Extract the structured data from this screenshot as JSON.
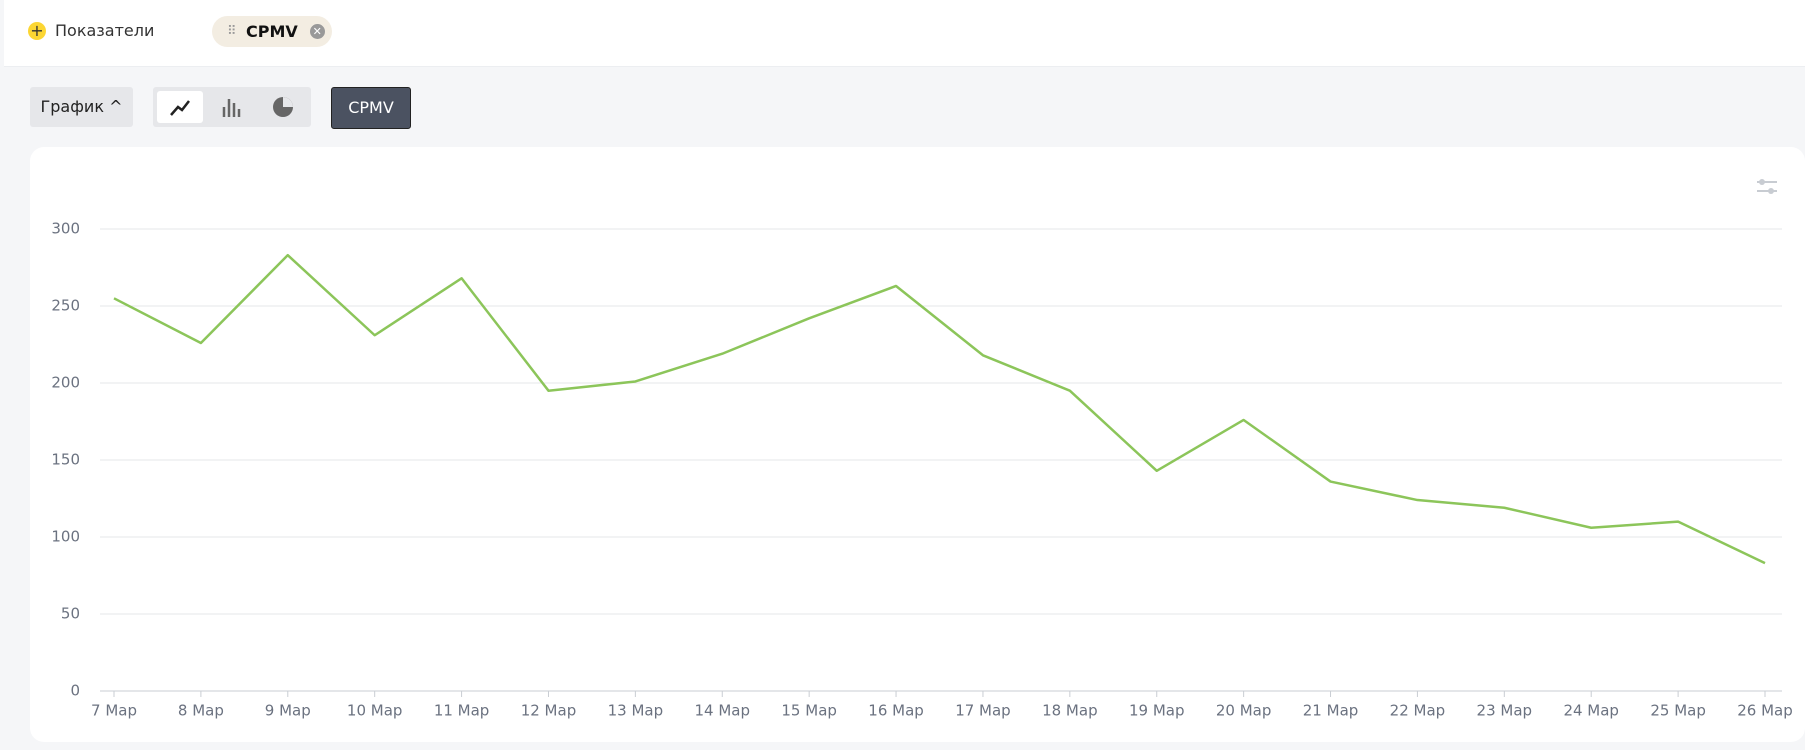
{
  "ui": {
    "metrics_label": "Показатели",
    "metric_chip": "CPMV",
    "view_button": "График",
    "metric_button": "CPMV"
  },
  "chart_data": {
    "type": "line",
    "categories": [
      "7 Мар",
      "8 Мар",
      "9 Мар",
      "10 Мар",
      "11 Мар",
      "12 Мар",
      "13 Мар",
      "14 Мар",
      "15 Мар",
      "16 Мар",
      "17 Мар",
      "18 Мар",
      "19 Мар",
      "20 Мар",
      "21 Мар",
      "22 Мар",
      "23 Мар",
      "24 Мар",
      "25 Мар",
      "26 Мар"
    ],
    "series": [
      {
        "name": "CPMV",
        "color": "#8cc55a",
        "values": [
          255,
          226,
          283,
          231,
          268,
          195,
          201,
          219,
          242,
          263,
          218,
          195,
          143,
          176,
          136,
          124,
          119,
          106,
          110,
          83
        ]
      }
    ],
    "ylim": [
      0,
      300
    ],
    "yticks": [
      0,
      50,
      100,
      150,
      200,
      250,
      300
    ],
    "grid": true
  }
}
